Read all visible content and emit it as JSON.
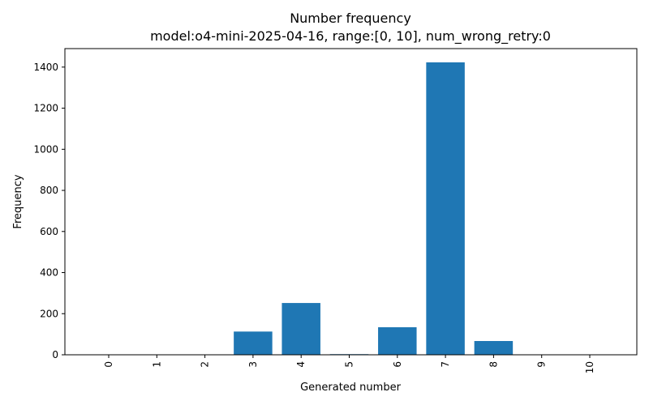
{
  "chart_data": {
    "type": "bar",
    "title": "Number frequency",
    "subtitle": "model:o4-mini-2025-04-16, range:[0, 10], num_wrong_retry:0",
    "xlabel": "Generated number",
    "ylabel": "Frequency",
    "categories": [
      "0",
      "1",
      "2",
      "3",
      "4",
      "5",
      "6",
      "7",
      "8",
      "9",
      "10"
    ],
    "values": [
      0,
      0,
      0,
      113,
      252,
      3,
      134,
      1423,
      67,
      0,
      0
    ],
    "ylim": [
      0,
      1490
    ],
    "yticks": [
      0,
      200,
      400,
      600,
      800,
      1000,
      1200,
      1400
    ],
    "x_tick_rotation": "vertical",
    "grid": false,
    "legend": "none",
    "bar_color": "#1f77b4"
  }
}
